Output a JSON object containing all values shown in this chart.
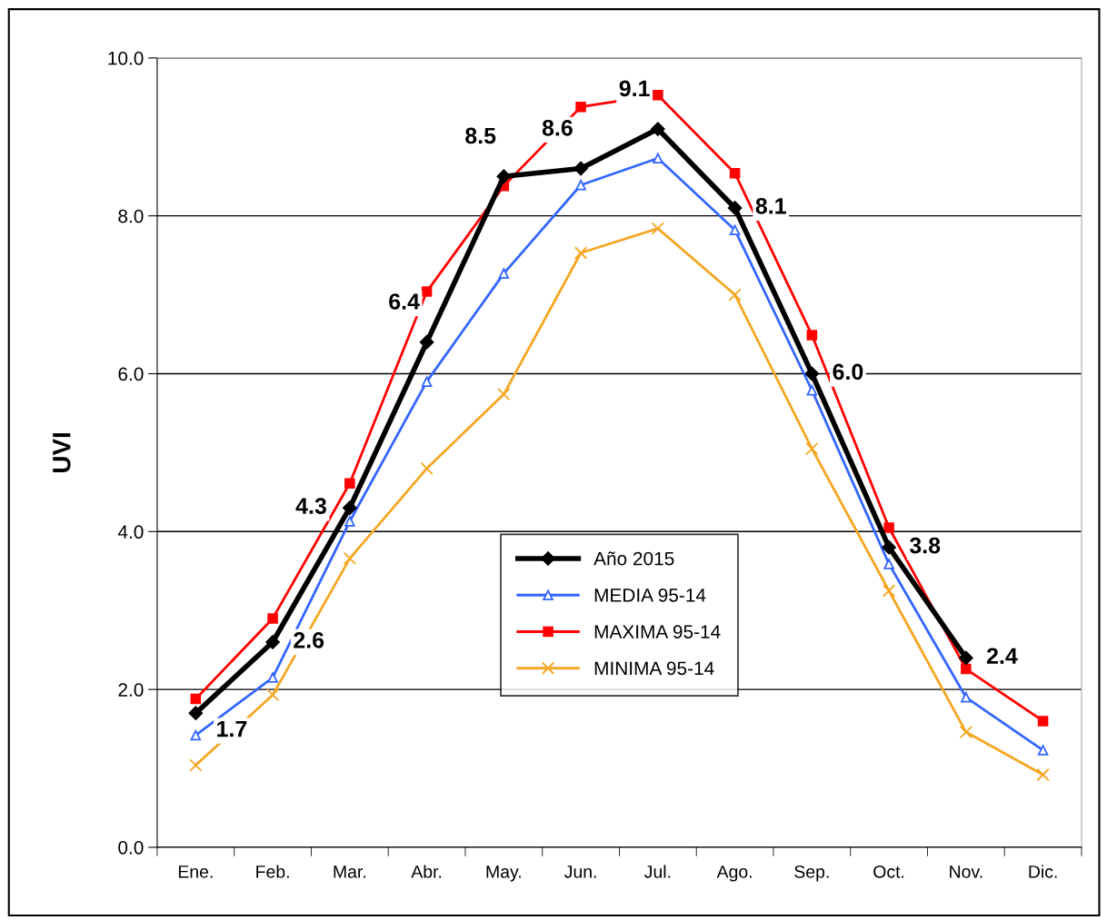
{
  "chart_data": {
    "type": "line",
    "ylabel": "UVI",
    "categories": [
      "Ene.",
      "Feb.",
      "Mar.",
      "Abr.",
      "May.",
      "Jun.",
      "Jul.",
      "Ago.",
      "Sep.",
      "Oct.",
      "Nov.",
      "Dic."
    ],
    "series": [
      {
        "name": "Año 2015",
        "color": "#000000",
        "marker": "diamond",
        "values": [
          1.7,
          2.6,
          4.3,
          6.4,
          8.5,
          8.6,
          9.1,
          8.1,
          6.0,
          3.8,
          2.4,
          null
        ],
        "value_labels": [
          "1.7",
          "2.6",
          "4.3",
          "6.4",
          "8.5",
          "8.6",
          "9.1",
          "8.1",
          "6.0",
          "3.8",
          "2.4",
          null
        ]
      },
      {
        "name": "MEDIA 95-14",
        "color": "#3366ff",
        "marker": "triangle",
        "values": [
          1.42,
          2.15,
          4.13,
          5.9,
          7.27,
          8.39,
          8.73,
          7.82,
          5.79,
          3.59,
          1.9,
          1.23
        ]
      },
      {
        "name": "MAXIMA 95-14",
        "color": "#ff0000",
        "marker": "square",
        "values": [
          1.88,
          2.9,
          4.61,
          7.04,
          8.38,
          9.38,
          9.53,
          8.54,
          6.49,
          4.05,
          2.26,
          1.6
        ]
      },
      {
        "name": "MINIMA 95-14",
        "color": "#f5a623",
        "marker": "cross",
        "values": [
          1.04,
          1.93,
          3.66,
          4.8,
          5.74,
          7.53,
          7.84,
          7.0,
          5.05,
          3.25,
          1.46,
          0.92
        ]
      }
    ],
    "ylim": [
      0,
      10
    ],
    "yticks": [
      {
        "value": 0,
        "label": "0.0"
      },
      {
        "value": 2,
        "label": "2.0"
      },
      {
        "value": 4,
        "label": "4.0"
      },
      {
        "value": 6,
        "label": "6.0"
      },
      {
        "value": 8,
        "label": "8.0"
      },
      {
        "value": 10,
        "label": "10.0"
      }
    ],
    "grid": "y",
    "legend": "bottom center",
    "line_style": "solid"
  }
}
